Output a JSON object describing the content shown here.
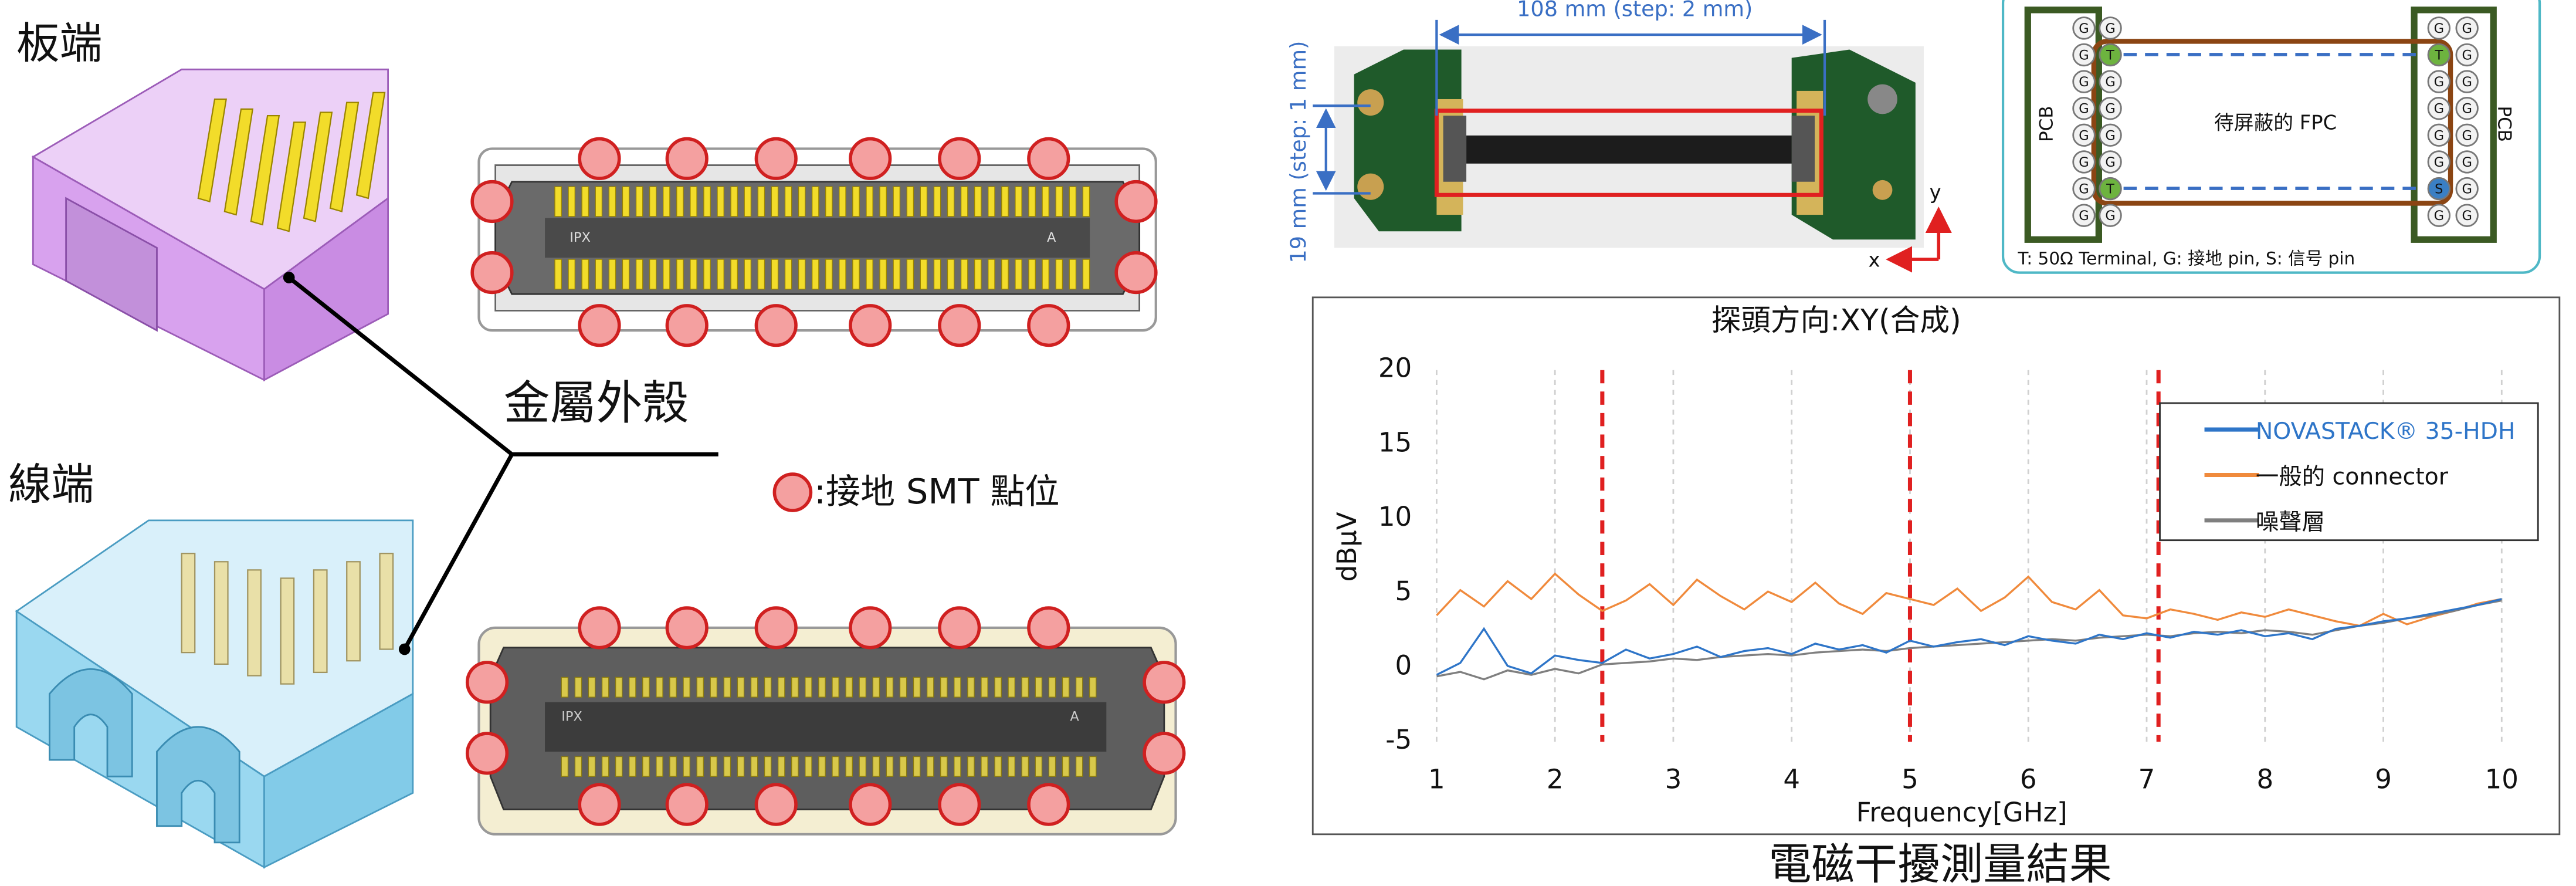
{
  "labels": {
    "board_end": "板端",
    "cable_end": "線端",
    "metal_shell": "金屬外殼",
    "ground_legend": ":接地 SMT 點位",
    "connector_mark": "IPX",
    "connector_pin1": "A"
  },
  "photo": {
    "length": "108 mm (step: 2 mm)",
    "width": "19 mm (step: 1 mm)",
    "axis_y": "y",
    "axis_x": "x"
  },
  "diagram": {
    "pcb_left": "PCB",
    "pcb_right": "PCB",
    "fpc": "待屏蔽的 FPC",
    "legend": "T: 50Ω Terminal, G: 接地 pin, S: 信号 pin",
    "pin_fill": {
      "G": "#f2f2f2",
      "T": "#6db33f",
      "S": "#3a7fc4"
    },
    "pins": [
      [
        "G",
        "G",
        "G",
        "G",
        "G",
        "G",
        "G",
        "G"
      ],
      [
        "G",
        "T",
        "G",
        "G",
        "G",
        "G",
        "T",
        "G"
      ],
      [
        "G",
        "T",
        "G",
        "G",
        "G",
        "G",
        "S",
        "G"
      ],
      [
        "G",
        "G",
        "G",
        "G",
        "G",
        "G",
        "G",
        "G"
      ]
    ]
  },
  "chart_data": {
    "type": "line",
    "title": "探頭方向:XY(合成)",
    "x_label": "Frequency[GHz]",
    "y_label": "dBµV",
    "x": [
      1,
      1.2,
      1.4,
      1.6,
      1.8,
      2,
      2.2,
      2.4,
      2.6,
      2.8,
      3,
      3.2,
      3.4,
      3.6,
      3.8,
      4,
      4.2,
      4.4,
      4.6,
      4.8,
      5,
      5.2,
      5.4,
      5.6,
      5.8,
      6,
      6.2,
      6.4,
      6.6,
      6.8,
      7,
      7.2,
      7.4,
      7.6,
      7.8,
      8,
      8.2,
      8.4,
      8.6,
      8.8,
      9,
      9.2,
      9.4,
      9.6,
      9.8,
      10
    ],
    "series": [
      {
        "name": "NOVASTACK® 35-HDH",
        "color": "#2e75c8",
        "values": [
          -0.5,
          0.3,
          2.6,
          0.1,
          -0.4,
          0.8,
          0.5,
          0.3,
          1.2,
          0.6,
          0.9,
          1.4,
          0.7,
          1.1,
          1.3,
          0.9,
          1.6,
          1.2,
          1.5,
          1.0,
          1.8,
          1.4,
          1.7,
          1.9,
          1.5,
          2.1,
          1.8,
          1.6,
          2.2,
          1.9,
          2.3,
          2.0,
          2.4,
          2.2,
          2.5,
          2.1,
          2.3,
          1.9,
          2.6,
          2.8,
          3.1,
          3.3,
          3.6,
          3.9,
          4.2,
          4.6
        ]
      },
      {
        "name": "一般的 connector",
        "color": "#f08a3c",
        "values": [
          3.5,
          5.2,
          4.1,
          5.8,
          4.6,
          6.3,
          4.9,
          3.8,
          4.5,
          5.6,
          4.2,
          5.9,
          4.8,
          3.9,
          5.1,
          4.4,
          5.7,
          4.3,
          3.6,
          5.0,
          4.6,
          4.2,
          5.3,
          3.8,
          4.7,
          6.1,
          4.4,
          3.9,
          5.2,
          3.5,
          3.3,
          3.9,
          3.6,
          3.2,
          3.7,
          3.4,
          3.9,
          3.5,
          3.1,
          2.8,
          3.6,
          2.9,
          3.4,
          3.8,
          4.3,
          4.6
        ]
      },
      {
        "name": "噪聲層",
        "color": "#7f7f7f",
        "values": [
          -0.6,
          -0.3,
          -0.8,
          -0.2,
          -0.5,
          -0.1,
          -0.4,
          0.2,
          0.3,
          0.4,
          0.6,
          0.5,
          0.7,
          0.8,
          0.9,
          0.8,
          1.0,
          1.1,
          1.2,
          1.1,
          1.3,
          1.4,
          1.5,
          1.6,
          1.7,
          1.8,
          1.9,
          1.8,
          2.0,
          2.1,
          2.2,
          2.1,
          2.3,
          2.4,
          2.3,
          2.5,
          2.4,
          2.2,
          2.5,
          2.8,
          3.0,
          3.3,
          3.5,
          3.8,
          4.2,
          4.5
        ]
      }
    ],
    "xlim": [
      1,
      10
    ],
    "ylim": [
      -5,
      20
    ],
    "xticks": [
      1,
      2,
      3,
      4,
      5,
      6,
      7,
      8,
      9,
      10
    ],
    "yticks": [
      -5,
      0,
      5,
      10,
      15,
      20
    ],
    "grid": true,
    "reference_lines": [
      2.4,
      5,
      7.1
    ],
    "reference_color": "#e02020",
    "legend": "upper right"
  },
  "caption": "電磁干擾測量結果"
}
